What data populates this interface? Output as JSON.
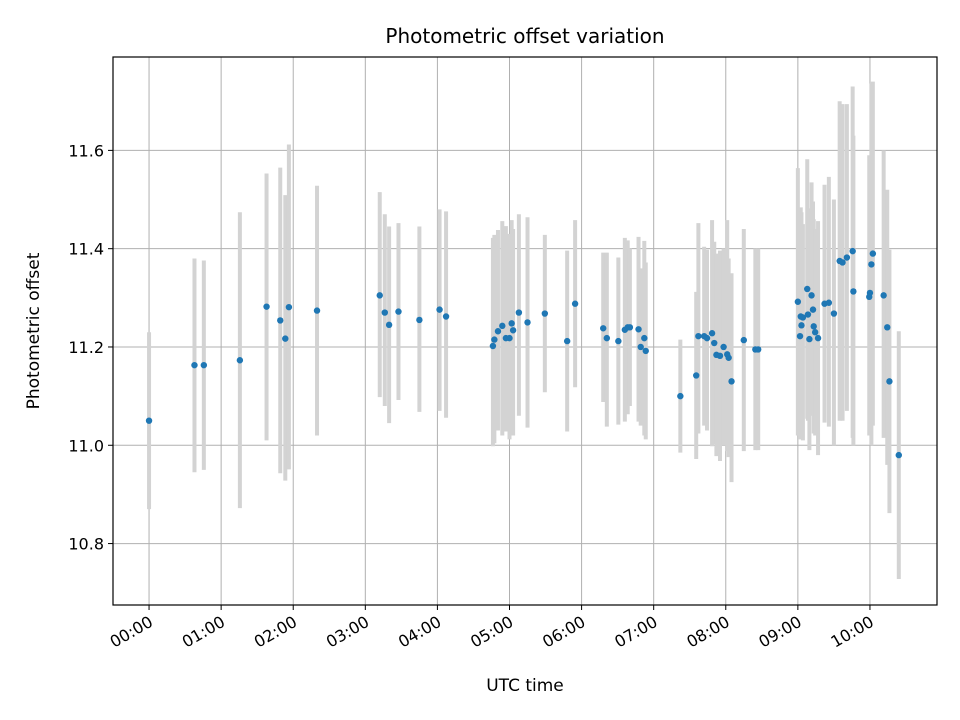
{
  "chart_data": {
    "type": "scatter",
    "title": "Photometric offset variation",
    "xlabel": "UTC time",
    "ylabel": "Photometric offset",
    "x_unit": "hours (UTC)",
    "xlim": [
      -0.5,
      10.93
    ],
    "ylim": [
      10.675,
      11.79
    ],
    "xticks": [
      {
        "value": 0,
        "label": "00:00"
      },
      {
        "value": 1,
        "label": "01:00"
      },
      {
        "value": 2,
        "label": "02:00"
      },
      {
        "value": 3,
        "label": "03:00"
      },
      {
        "value": 4,
        "label": "04:00"
      },
      {
        "value": 5,
        "label": "05:00"
      },
      {
        "value": 6,
        "label": "06:00"
      },
      {
        "value": 7,
        "label": "07:00"
      },
      {
        "value": 8,
        "label": "08:00"
      },
      {
        "value": 9,
        "label": "09:00"
      },
      {
        "value": 10,
        "label": "10:00"
      }
    ],
    "yticks": [
      {
        "value": 10.8,
        "label": "10.8"
      },
      {
        "value": 11.0,
        "label": "11.0"
      },
      {
        "value": 11.2,
        "label": "11.2"
      },
      {
        "value": 11.4,
        "label": "11.4"
      },
      {
        "value": 11.6,
        "label": "11.6"
      }
    ],
    "grid": true,
    "colors": {
      "point": "#1f77b4",
      "errorbar": "#d3d3d3",
      "grid": "#b0b0b0"
    },
    "points": [
      {
        "x": 0.0,
        "y": 11.05,
        "ylo": 10.87,
        "yhi": 11.23
      },
      {
        "x": 0.63,
        "y": 11.163,
        "ylo": 10.945,
        "yhi": 11.38
      },
      {
        "x": 0.76,
        "y": 11.163,
        "ylo": 10.95,
        "yhi": 11.376
      },
      {
        "x": 1.26,
        "y": 11.173,
        "ylo": 10.872,
        "yhi": 11.474
      },
      {
        "x": 1.63,
        "y": 11.282,
        "ylo": 11.01,
        "yhi": 11.553
      },
      {
        "x": 1.82,
        "y": 11.254,
        "ylo": 10.943,
        "yhi": 11.565
      },
      {
        "x": 1.89,
        "y": 11.217,
        "ylo": 10.928,
        "yhi": 11.509
      },
      {
        "x": 1.94,
        "y": 11.281,
        "ylo": 10.951,
        "yhi": 11.612
      },
      {
        "x": 2.33,
        "y": 11.274,
        "ylo": 11.02,
        "yhi": 11.528
      },
      {
        "x": 3.2,
        "y": 11.305,
        "ylo": 11.098,
        "yhi": 11.515
      },
      {
        "x": 3.27,
        "y": 11.27,
        "ylo": 11.08,
        "yhi": 11.47
      },
      {
        "x": 3.33,
        "y": 11.245,
        "ylo": 11.045,
        "yhi": 11.445
      },
      {
        "x": 3.46,
        "y": 11.272,
        "ylo": 11.092,
        "yhi": 11.452
      },
      {
        "x": 3.75,
        "y": 11.255,
        "ylo": 11.068,
        "yhi": 11.445
      },
      {
        "x": 4.03,
        "y": 11.276,
        "ylo": 11.07,
        "yhi": 11.48
      },
      {
        "x": 4.12,
        "y": 11.262,
        "ylo": 11.056,
        "yhi": 11.476
      },
      {
        "x": 4.77,
        "y": 11.202,
        "ylo": 10.998,
        "yhi": 11.422
      },
      {
        "x": 4.79,
        "y": 11.215,
        "ylo": 11.004,
        "yhi": 11.428
      },
      {
        "x": 4.84,
        "y": 11.232,
        "ylo": 11.03,
        "yhi": 11.438
      },
      {
        "x": 4.9,
        "y": 11.243,
        "ylo": 11.02,
        "yhi": 11.456
      },
      {
        "x": 4.95,
        "y": 11.218,
        "ylo": 11.028,
        "yhi": 11.446
      },
      {
        "x": 5.0,
        "y": 11.218,
        "ylo": 11.012,
        "yhi": 11.43
      },
      {
        "x": 5.03,
        "y": 11.248,
        "ylo": 11.04,
        "yhi": 11.458
      },
      {
        "x": 5.05,
        "y": 11.234,
        "ylo": 11.02,
        "yhi": 11.44
      },
      {
        "x": 5.13,
        "y": 11.27,
        "ylo": 11.06,
        "yhi": 11.47
      },
      {
        "x": 5.25,
        "y": 11.25,
        "ylo": 11.036,
        "yhi": 11.464
      },
      {
        "x": 5.49,
        "y": 11.268,
        "ylo": 11.108,
        "yhi": 11.428
      },
      {
        "x": 5.8,
        "y": 11.212,
        "ylo": 11.028,
        "yhi": 11.396
      },
      {
        "x": 5.91,
        "y": 11.288,
        "ylo": 11.118,
        "yhi": 11.458
      },
      {
        "x": 6.3,
        "y": 11.238,
        "ylo": 11.088,
        "yhi": 11.392
      },
      {
        "x": 6.35,
        "y": 11.218,
        "ylo": 11.038,
        "yhi": 11.392
      },
      {
        "x": 6.51,
        "y": 11.212,
        "ylo": 11.042,
        "yhi": 11.382
      },
      {
        "x": 6.6,
        "y": 11.235,
        "ylo": 11.048,
        "yhi": 11.422
      },
      {
        "x": 6.64,
        "y": 11.24,
        "ylo": 11.063,
        "yhi": 11.417
      },
      {
        "x": 6.67,
        "y": 11.24,
        "ylo": 11.08,
        "yhi": 11.4
      },
      {
        "x": 6.79,
        "y": 11.236,
        "ylo": 11.048,
        "yhi": 11.424
      },
      {
        "x": 6.82,
        "y": 11.2,
        "ylo": 11.04,
        "yhi": 11.36
      },
      {
        "x": 6.87,
        "y": 11.218,
        "ylo": 11.02,
        "yhi": 11.416
      },
      {
        "x": 6.89,
        "y": 11.192,
        "ylo": 11.012,
        "yhi": 11.372
      },
      {
        "x": 7.37,
        "y": 11.1,
        "ylo": 10.985,
        "yhi": 11.215
      },
      {
        "x": 7.59,
        "y": 11.142,
        "ylo": 10.972,
        "yhi": 11.312
      },
      {
        "x": 7.62,
        "y": 11.222,
        "ylo": 11.024,
        "yhi": 11.452
      },
      {
        "x": 7.7,
        "y": 11.222,
        "ylo": 11.04,
        "yhi": 11.404
      },
      {
        "x": 7.74,
        "y": 11.218,
        "ylo": 11.03,
        "yhi": 11.398
      },
      {
        "x": 7.81,
        "y": 11.228,
        "ylo": 10.998,
        "yhi": 11.458
      },
      {
        "x": 7.84,
        "y": 11.208,
        "ylo": 11.002,
        "yhi": 11.414
      },
      {
        "x": 7.87,
        "y": 11.184,
        "ylo": 10.978,
        "yhi": 11.39
      },
      {
        "x": 7.92,
        "y": 11.182,
        "ylo": 10.968,
        "yhi": 11.396
      },
      {
        "x": 7.97,
        "y": 11.2,
        "ylo": 11.0,
        "yhi": 11.4
      },
      {
        "x": 8.02,
        "y": 11.185,
        "ylo": 10.988,
        "yhi": 11.458
      },
      {
        "x": 8.04,
        "y": 11.178,
        "ylo": 10.976,
        "yhi": 11.38
      },
      {
        "x": 8.08,
        "y": 11.13,
        "ylo": 10.925,
        "yhi": 11.35
      },
      {
        "x": 8.25,
        "y": 11.214,
        "ylo": 10.988,
        "yhi": 11.44
      },
      {
        "x": 8.41,
        "y": 11.195,
        "ylo": 10.99,
        "yhi": 11.4
      },
      {
        "x": 8.45,
        "y": 11.195,
        "ylo": 10.99,
        "yhi": 11.4
      },
      {
        "x": 9.0,
        "y": 11.292,
        "ylo": 11.02,
        "yhi": 11.564
      },
      {
        "x": 9.03,
        "y": 11.222,
        "ylo": 11.012,
        "yhi": 11.432
      },
      {
        "x": 9.04,
        "y": 11.262,
        "ylo": 11.04,
        "yhi": 11.484
      },
      {
        "x": 9.05,
        "y": 11.244,
        "ylo": 11.014,
        "yhi": 11.474
      },
      {
        "x": 9.07,
        "y": 11.26,
        "ylo": 11.01,
        "yhi": 11.45
      },
      {
        "x": 9.13,
        "y": 11.318,
        "ylo": 11.054,
        "yhi": 11.582
      },
      {
        "x": 9.14,
        "y": 11.266,
        "ylo": 11.05,
        "yhi": 11.482
      },
      {
        "x": 9.16,
        "y": 11.216,
        "ylo": 10.99,
        "yhi": 11.44
      },
      {
        "x": 9.19,
        "y": 11.305,
        "ylo": 11.075,
        "yhi": 11.535
      },
      {
        "x": 9.21,
        "y": 11.276,
        "ylo": 11.06,
        "yhi": 11.496
      },
      {
        "x": 9.22,
        "y": 11.242,
        "ylo": 11.024,
        "yhi": 11.46
      },
      {
        "x": 9.24,
        "y": 11.23,
        "ylo": 11.02,
        "yhi": 11.44
      },
      {
        "x": 9.28,
        "y": 11.218,
        "ylo": 10.98,
        "yhi": 11.456
      },
      {
        "x": 9.37,
        "y": 11.288,
        "ylo": 11.046,
        "yhi": 11.53
      },
      {
        "x": 9.43,
        "y": 11.29,
        "ylo": 11.038,
        "yhi": 11.546
      },
      {
        "x": 9.5,
        "y": 11.268,
        "ylo": 11.0,
        "yhi": 11.5
      },
      {
        "x": 9.58,
        "y": 11.375,
        "ylo": 11.05,
        "yhi": 11.7
      },
      {
        "x": 9.62,
        "y": 11.372,
        "ylo": 11.05,
        "yhi": 11.694
      },
      {
        "x": 9.68,
        "y": 11.382,
        "ylo": 11.07,
        "yhi": 11.694
      },
      {
        "x": 9.76,
        "y": 11.395,
        "ylo": 11.015,
        "yhi": 11.73
      },
      {
        "x": 9.77,
        "y": 11.313,
        "ylo": 11.0,
        "yhi": 11.63
      },
      {
        "x": 9.99,
        "y": 11.302,
        "ylo": 11.02,
        "yhi": 11.59
      },
      {
        "x": 10.0,
        "y": 11.31,
        "ylo": 11.034,
        "yhi": 11.586
      },
      {
        "x": 10.02,
        "y": 11.368,
        "ylo": 11.0,
        "yhi": 11.736
      },
      {
        "x": 10.04,
        "y": 11.39,
        "ylo": 11.04,
        "yhi": 11.74
      },
      {
        "x": 10.19,
        "y": 11.305,
        "ylo": 11.015,
        "yhi": 11.6
      },
      {
        "x": 10.24,
        "y": 11.24,
        "ylo": 10.96,
        "yhi": 11.52
      },
      {
        "x": 10.27,
        "y": 11.13,
        "ylo": 10.862,
        "yhi": 11.398
      },
      {
        "x": 10.4,
        "y": 10.98,
        "ylo": 10.728,
        "yhi": 11.232
      }
    ]
  }
}
